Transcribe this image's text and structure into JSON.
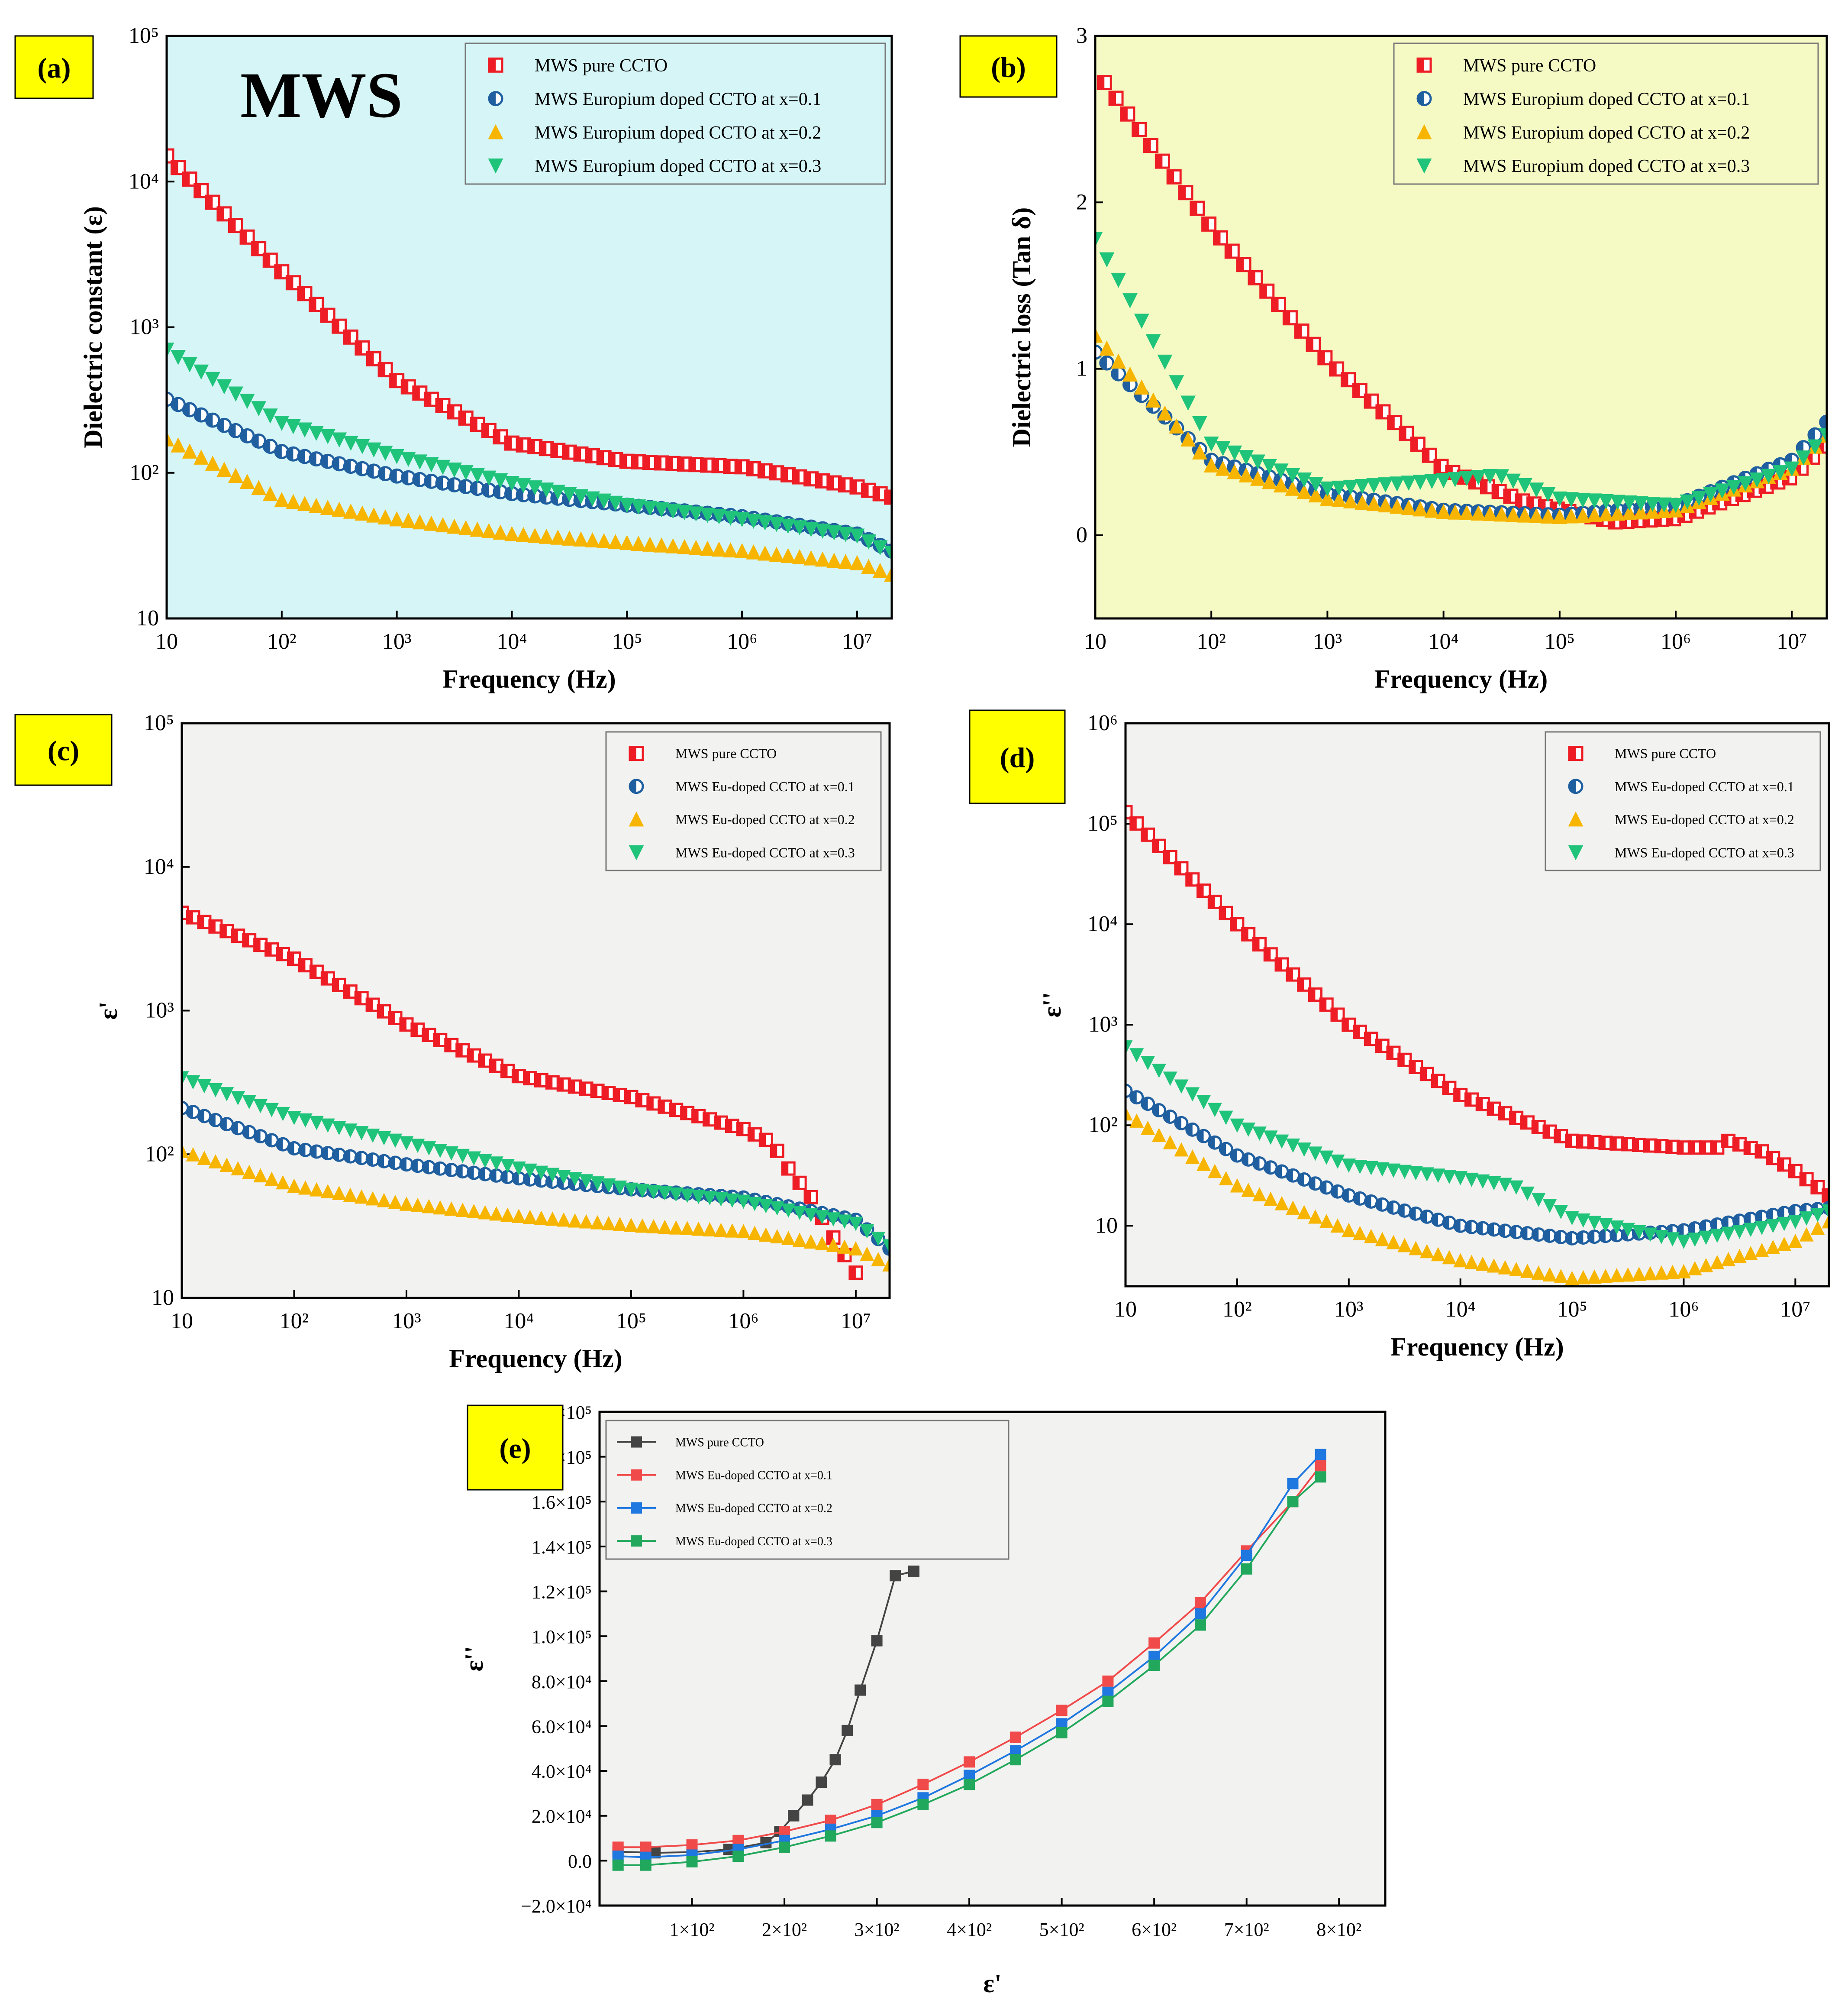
{
  "chart_data": [
    {
      "panel": "(a)",
      "type": "scatter",
      "annotation": "MWS",
      "xlabel": "Frequency (Hz)",
      "ylabel": "Dielectric constant (ε)",
      "xscale": "log",
      "yscale": "log",
      "xlim": [
        10,
        20000000
      ],
      "ylim": [
        10,
        100000
      ],
      "xticks": [
        "10",
        "10²",
        "10³",
        "10⁴",
        "10⁵",
        "10⁶",
        "10⁷"
      ],
      "yticks": [
        "10",
        "10²",
        "10³",
        "10⁴",
        "10⁵"
      ],
      "legend_position": "top-right",
      "background": "#d6f5f7",
      "series": [
        {
          "name": "MWS pure CCTO",
          "marker": "square",
          "color": "#ee1c24",
          "x": [
            10,
            100,
            1000,
            10000,
            100000,
            1000000,
            10000000,
            20000000
          ],
          "y": [
            15000,
            2400,
            430,
            160,
            120,
            110,
            80,
            68
          ]
        },
        {
          "name": "MWS Europium doped CCTO at x=0.1",
          "marker": "circle",
          "color": "#1f5fa0",
          "x": [
            10,
            100,
            1000,
            10000,
            100000,
            1000000,
            10000000,
            20000000
          ],
          "y": [
            320,
            140,
            95,
            72,
            60,
            50,
            38,
            29
          ]
        },
        {
          "name": "MWS Europium doped CCTO at x=0.2",
          "marker": "triangle-up",
          "color": "#f7b500",
          "x": [
            10,
            100,
            1000,
            10000,
            100000,
            1000000,
            10000000,
            20000000
          ],
          "y": [
            170,
            65,
            48,
            38,
            33,
            29,
            24,
            20
          ]
        },
        {
          "name": "MWS Europium doped CCTO at x=0.3",
          "marker": "triangle-down",
          "color": "#1fc47a",
          "x": [
            10,
            100,
            1000,
            10000,
            100000,
            1000000,
            10000000,
            20000000
          ],
          "y": [
            700,
            220,
            130,
            85,
            60,
            48,
            37,
            28
          ]
        }
      ]
    },
    {
      "panel": "(b)",
      "type": "scatter",
      "xlabel": "Frequency (Hz)",
      "ylabel": "Dielectric loss (Tan δ)",
      "xscale": "log",
      "yscale": "linear",
      "xlim": [
        10,
        20000000
      ],
      "ylim": [
        -0.5,
        3
      ],
      "xticks": [
        "10",
        "10²",
        "10³",
        "10⁴",
        "10⁵",
        "10⁶",
        "10⁷"
      ],
      "yticks": [
        "0",
        "1",
        "2",
        "3"
      ],
      "legend_position": "top-right",
      "background": "#f5fac4",
      "series": [
        {
          "name": "MWS pure CCTO",
          "marker": "square",
          "color": "#ee1c24",
          "x": [
            12,
            100,
            1000,
            5000,
            10000,
            50000,
            300000,
            1000000,
            10000000,
            20000000
          ],
          "y": [
            2.72,
            1.85,
            1.05,
            0.6,
            0.4,
            0.2,
            0.08,
            0.1,
            0.35,
            0.55
          ]
        },
        {
          "name": "MWS Europium doped CCTO at x=0.1",
          "marker": "circle",
          "color": "#1f5fa0",
          "x": [
            10,
            100,
            1000,
            10000,
            100000,
            1000000,
            10000000,
            20000000
          ],
          "y": [
            1.1,
            0.45,
            0.25,
            0.15,
            0.12,
            0.18,
            0.45,
            0.68
          ]
        },
        {
          "name": "MWS Europium doped CCTO at x=0.2",
          "marker": "triangle-up",
          "color": "#f7b500",
          "x": [
            10,
            100,
            1000,
            10000,
            100000,
            1000000,
            10000000,
            20000000
          ],
          "y": [
            1.2,
            0.42,
            0.22,
            0.14,
            0.11,
            0.15,
            0.4,
            0.6
          ]
        },
        {
          "name": "MWS Europium doped CCTO at x=0.3",
          "marker": "triangle-down",
          "color": "#1fc47a",
          "x": [
            10,
            100,
            1000,
            10000,
            30000,
            100000,
            1000000,
            10000000,
            20000000
          ],
          "y": [
            1.78,
            0.55,
            0.28,
            0.33,
            0.36,
            0.22,
            0.18,
            0.4,
            0.6
          ]
        }
      ]
    },
    {
      "panel": "(c)",
      "type": "scatter",
      "xlabel": "Frequency (Hz)",
      "ylabel": "ε'",
      "xscale": "log",
      "yscale": "log",
      "xlim": [
        10,
        20000000
      ],
      "ylim": [
        10,
        100000
      ],
      "xticks": [
        "10",
        "10²",
        "10³",
        "10⁴",
        "10⁵",
        "10⁶",
        "10⁷"
      ],
      "yticks": [
        "10",
        "10²",
        "10³",
        "10⁴",
        "10⁵"
      ],
      "legend_position": "top-right",
      "background": "#f2f2f0",
      "series": [
        {
          "name": "MWS pure CCTO",
          "marker": "square",
          "color": "#ee1c24",
          "x": [
            10,
            100,
            1000,
            10000,
            100000,
            1000000,
            1800000,
            2500000,
            4000000,
            6000000,
            10000000
          ],
          "y": [
            4800,
            2300,
            800,
            350,
            250,
            150,
            120,
            80,
            50,
            28,
            15
          ]
        },
        {
          "name": "MWS Eu-doped CCTO at x=0.1",
          "marker": "circle",
          "color": "#1f5fa0",
          "x": [
            10,
            100,
            1000,
            10000,
            100000,
            1000000,
            10000000,
            20000000
          ],
          "y": [
            210,
            110,
            85,
            68,
            57,
            50,
            35,
            22
          ]
        },
        {
          "name": "MWS Eu-doped CCTO at x=0.2",
          "marker": "triangle-up",
          "color": "#f7b500",
          "x": [
            10,
            100,
            1000,
            10000,
            100000,
            1000000,
            10000000,
            20000000
          ],
          "y": [
            105,
            60,
            45,
            37,
            32,
            29,
            22,
            17
          ]
        },
        {
          "name": "MWS Eu-doped CCTO at x=0.3",
          "marker": "triangle-down",
          "color": "#1fc47a",
          "x": [
            10,
            100,
            1000,
            10000,
            100000,
            1000000,
            10000000,
            20000000
          ],
          "y": [
            340,
            180,
            120,
            80,
            57,
            47,
            33,
            23
          ]
        }
      ]
    },
    {
      "panel": "(d)",
      "type": "scatter",
      "xlabel": "Frequency (Hz)",
      "ylabel": "ε''",
      "xscale": "log",
      "yscale": "log",
      "xlim": [
        10,
        20000000
      ],
      "ylim": [
        2.5,
        1000000
      ],
      "xticks": [
        "10",
        "10²",
        "10³",
        "10⁴",
        "10⁵",
        "10⁶",
        "10⁷"
      ],
      "yticks": [
        "10",
        "10²",
        "10³",
        "10⁴",
        "10⁵",
        "10⁶"
      ],
      "legend_position": "top-right",
      "background": "#f2f2f0",
      "series": [
        {
          "name": "MWS pure CCTO",
          "marker": "square",
          "color": "#ee1c24",
          "x": [
            10,
            100,
            1000,
            10000,
            100000,
            1000000,
            2000000,
            2500000,
            5000000,
            10000000,
            20000000
          ],
          "y": [
            130000,
            10000,
            1000,
            200,
            70,
            60,
            60,
            70,
            55,
            35,
            20
          ]
        },
        {
          "name": "MWS Eu-doped CCTO at x=0.1",
          "marker": "circle",
          "color": "#1f5fa0",
          "x": [
            10,
            100,
            1000,
            10000,
            100000,
            1000000,
            10000000,
            20000000
          ],
          "y": [
            220,
            50,
            20,
            10,
            7.5,
            9,
            14,
            15
          ]
        },
        {
          "name": "MWS Eu-doped CCTO at x=0.2",
          "marker": "triangle-up",
          "color": "#f7b500",
          "x": [
            10,
            100,
            1000,
            10000,
            100000,
            1000000,
            10000000,
            20000000
          ],
          "y": [
            130,
            25,
            9,
            4.5,
            3,
            3.5,
            7,
            11
          ]
        },
        {
          "name": "MWS Eu-doped CCTO at x=0.3",
          "marker": "triangle-down",
          "color": "#1fc47a",
          "x": [
            10,
            100,
            1000,
            10000,
            30000,
            100000,
            1000000,
            10000000,
            20000000
          ],
          "y": [
            600,
            100,
            40,
            30,
            25,
            12,
            7,
            11,
            14
          ]
        }
      ]
    },
    {
      "panel": "(e)",
      "type": "line",
      "xlabel": "ε'",
      "ylabel": "ε''",
      "xlim": [
        0,
        850
      ],
      "ylim": [
        -20000,
        200000
      ],
      "xticks": [
        {
          "v": 100,
          "label": "1×10²"
        },
        {
          "v": 200,
          "label": "2×10²"
        },
        {
          "v": 300,
          "label": "3×10²"
        },
        {
          "v": 400,
          "label": "4×10²"
        },
        {
          "v": 500,
          "label": "5×10²"
        },
        {
          "v": 600,
          "label": "6×10²"
        },
        {
          "v": 700,
          "label": "7×10²"
        },
        {
          "v": 800,
          "label": "8×10²"
        }
      ],
      "yticks": [
        {
          "v": -20000,
          "label": "−2.0×10⁴"
        },
        {
          "v": 0,
          "label": "0.0"
        },
        {
          "v": 20000,
          "label": "2.0×10⁴"
        },
        {
          "v": 40000,
          "label": "4.0×10⁴"
        },
        {
          "v": 60000,
          "label": "6.0×10⁴"
        },
        {
          "v": 80000,
          "label": "8.0×10⁴"
        },
        {
          "v": 100000,
          "label": "1.0×10⁵"
        },
        {
          "v": 120000,
          "label": "1.2×10⁵"
        },
        {
          "v": 140000,
          "label": "1.4×10⁵"
        },
        {
          "v": 160000,
          "label": "1.6×10⁵"
        },
        {
          "v": 180000,
          "label": "1.8×10⁵"
        },
        {
          "v": 200000,
          "label": "2.0×10⁵"
        }
      ],
      "legend_position": "top-left",
      "background": "#f2f2f0",
      "series": [
        {
          "name": "MWS pure CCTO",
          "color": "#444444",
          "x": [
            20,
            60,
            100,
            140,
            180,
            195,
            210,
            225,
            240,
            255,
            268,
            282,
            300,
            320,
            340
          ],
          "y": [
            4000,
            3500,
            3800,
            5000,
            8000,
            13000,
            20000,
            27000,
            35000,
            45000,
            58000,
            76000,
            98000,
            127000,
            129000
          ]
        },
        {
          "name": "MWS Eu-doped CCTO at x=0.1",
          "color": "#f04a4a",
          "x": [
            20,
            50,
            100,
            150,
            200,
            250,
            300,
            350,
            400,
            450,
            500,
            550,
            600,
            650,
            700,
            750,
            780
          ],
          "y": [
            6000,
            6000,
            7000,
            9000,
            13000,
            18000,
            25000,
            34000,
            44000,
            55000,
            67000,
            80000,
            97000,
            115000,
            138000,
            160000,
            176000
          ]
        },
        {
          "name": "MWS Eu-doped CCTO at x=0.2",
          "color": "#1f77e0",
          "x": [
            20,
            50,
            100,
            150,
            200,
            250,
            300,
            350,
            400,
            450,
            500,
            550,
            600,
            650,
            700,
            750,
            780
          ],
          "y": [
            2000,
            1500,
            2500,
            5000,
            9000,
            14000,
            20000,
            28000,
            38000,
            49000,
            61000,
            75000,
            91000,
            110000,
            136000,
            168000,
            181000
          ]
        },
        {
          "name": "MWS Eu-doped CCTO at x=0.3",
          "color": "#22a85c",
          "x": [
            20,
            50,
            100,
            150,
            200,
            250,
            300,
            350,
            400,
            450,
            500,
            550,
            600,
            650,
            700,
            750,
            780
          ],
          "y": [
            -2000,
            -2000,
            -500,
            2000,
            6000,
            11000,
            17000,
            25000,
            34000,
            45000,
            57000,
            71000,
            87000,
            105000,
            130000,
            160000,
            171000
          ]
        }
      ]
    }
  ]
}
